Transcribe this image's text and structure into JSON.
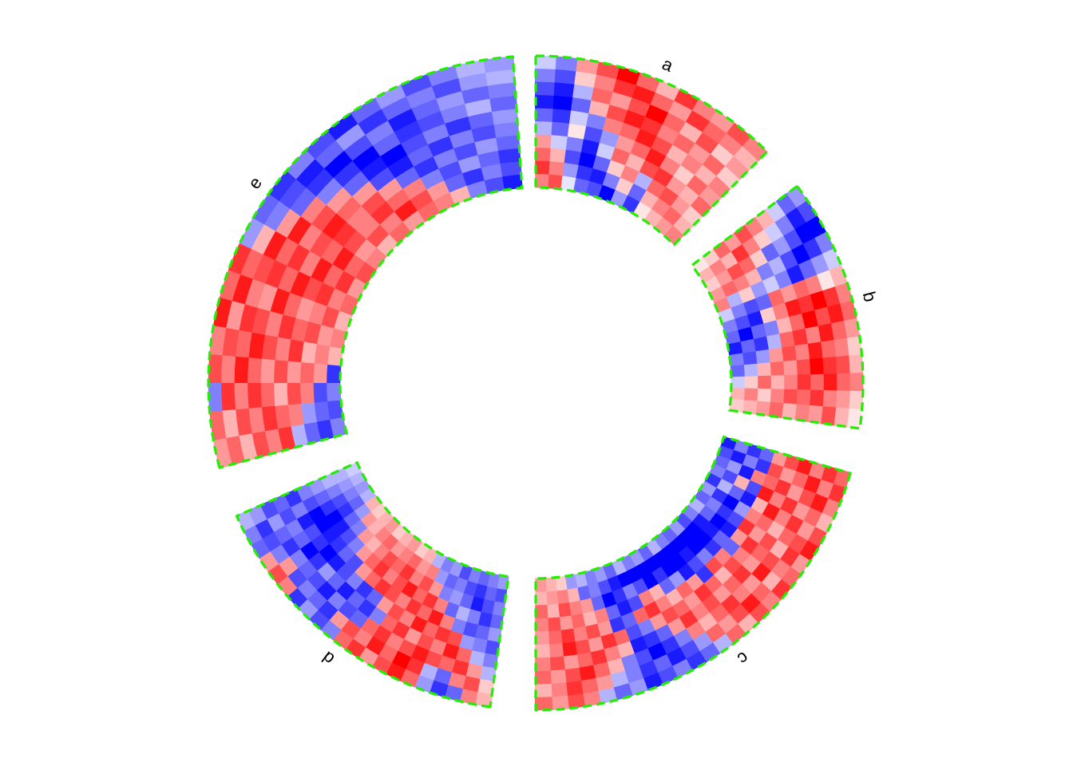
{
  "chart_data": {
    "type": "heatmap",
    "layout": "circular",
    "color_scale": {
      "low": "#0000ff",
      "mid": "#ffffff",
      "high": "#ff0000",
      "domain": [
        -1,
        0,
        1
      ]
    },
    "sector_border_color": "#22ee00",
    "sector_border_style": "dashed",
    "sectors": [
      {
        "label": "a",
        "rows": 10,
        "cols": 12,
        "values": [
          [
            -0.2,
            -0.5,
            0.4,
            0.7,
            1.0,
            0.6,
            0.3,
            0.8,
            0.5,
            0.4,
            0.7,
            0.5
          ],
          [
            -0.5,
            -0.7,
            0.2,
            0.5,
            0.8,
            0.9,
            0.6,
            0.4,
            0.8,
            0.6,
            0.5,
            0.3
          ],
          [
            -0.7,
            -0.9,
            -0.3,
            0.6,
            0.4,
            0.7,
            1.0,
            0.6,
            0.3,
            0.7,
            0.2,
            0.4
          ],
          [
            -0.9,
            -1.0,
            -0.6,
            0.3,
            0.7,
            0.9,
            0.8,
            0.5,
            0.6,
            0.4,
            0.6,
            0.2
          ],
          [
            -0.6,
            -0.8,
            -0.2,
            -0.5,
            0.5,
            0.6,
            0.9,
            0.7,
            0.3,
            0.5,
            0.3,
            0.5
          ],
          [
            -0.3,
            -0.6,
            0.1,
            -0.7,
            -0.4,
            0.4,
            0.6,
            0.9,
            0.5,
            0.2,
            0.6,
            0.4
          ],
          [
            0.4,
            -0.2,
            -0.5,
            -0.9,
            -0.2,
            0.6,
            0.3,
            0.7,
            0.8,
            0.4,
            0.3,
            0.6
          ],
          [
            0.6,
            0.3,
            -0.7,
            -1.0,
            -0.6,
            0.2,
            0.5,
            -0.3,
            0.6,
            0.7,
            0.4,
            0.2
          ],
          [
            0.8,
            0.5,
            -0.4,
            -0.8,
            -0.9,
            -0.5,
            0.2,
            -0.6,
            0.3,
            0.5,
            0.6,
            0.3
          ],
          [
            0.5,
            0.7,
            -0.1,
            -0.6,
            -0.7,
            -1.0,
            -0.4,
            -0.8,
            0.1,
            0.3,
            0.4,
            0.5
          ]
        ]
      },
      {
        "label": "b",
        "rows": 10,
        "cols": 14,
        "values": [
          [
            -0.4,
            -0.7,
            -1.0,
            -0.5,
            -0.2,
            0.3,
            0.5,
            0.6,
            0.4,
            0.2,
            0.3,
            0.5,
            0.2,
            0.1
          ],
          [
            -0.6,
            -0.9,
            -1.0,
            -0.8,
            -0.4,
            0.1,
            0.8,
            0.9,
            0.6,
            0.5,
            0.7,
            0.6,
            0.4,
            0.3
          ],
          [
            -0.2,
            -0.5,
            -0.7,
            -1.0,
            -0.6,
            0.5,
            1.0,
            0.7,
            0.9,
            0.6,
            0.8,
            0.9,
            0.5,
            0.7
          ],
          [
            0.3,
            -0.2,
            -0.4,
            -0.7,
            -0.9,
            0.6,
            0.8,
            1.0,
            0.5,
            0.9,
            1.0,
            0.6,
            0.8,
            0.4
          ],
          [
            0.5,
            0.2,
            -0.6,
            -0.3,
            -0.5,
            0.4,
            0.9,
            0.6,
            0.8,
            0.5,
            0.7,
            0.8,
            0.6,
            0.5
          ],
          [
            0.7,
            0.5,
            0.2,
            -0.5,
            -0.2,
            0.6,
            0.5,
            0.3,
            0.6,
            0.7,
            0.4,
            0.5,
            0.7,
            0.3
          ],
          [
            0.4,
            0.8,
            0.6,
            0.3,
            -0.4,
            -0.6,
            0.2,
            -0.5,
            -0.3,
            0.4,
            0.6,
            0.3,
            0.5,
            0.6
          ],
          [
            0.6,
            0.3,
            0.7,
            0.5,
            0.2,
            -0.7,
            -0.9,
            -0.6,
            -0.8,
            -0.4,
            0.3,
            0.6,
            0.2,
            0.4
          ],
          [
            0.2,
            0.5,
            0.4,
            0.6,
            -0.3,
            -0.5,
            -0.7,
            -1.0,
            -0.6,
            -0.7,
            -0.3,
            0.2,
            0.5,
            0.3
          ],
          [
            0.1,
            0.3,
            0.2,
            0.4,
            0.5,
            -0.2,
            -0.5,
            -0.6,
            -0.9,
            -0.5,
            -0.6,
            -0.2,
            0.3,
            0.2
          ]
        ]
      },
      {
        "label": "c",
        "rows": 10,
        "cols": 26,
        "values": [
          [
            0.6,
            0.8,
            0.5,
            0.3,
            0.7,
            0.9,
            0.4,
            0.6,
            0.8,
            0.5,
            0.7,
            0.3,
            0.6,
            -0.3,
            -0.6,
            -0.8,
            -0.5,
            -0.7,
            -0.9,
            -0.4,
            -0.6,
            -0.3,
            0.5,
            0.7,
            0.4,
            0.6
          ],
          [
            0.8,
            0.5,
            0.9,
            0.6,
            0.4,
            0.7,
            0.8,
            0.5,
            0.3,
            0.6,
            0.9,
            0.7,
            0.4,
            0.6,
            -0.4,
            -0.7,
            -0.9,
            -0.6,
            -0.8,
            -0.5,
            -0.3,
            0.4,
            0.6,
            0.8,
            0.5,
            0.3
          ],
          [
            0.5,
            0.9,
            0.7,
            0.4,
            0.8,
            0.6,
            0.3,
            0.7,
            0.9,
            0.4,
            0.5,
            0.8,
            0.6,
            0.3,
            0.5,
            -0.5,
            -0.8,
            -1.0,
            -0.7,
            -0.5,
            0.3,
            0.6,
            0.9,
            0.7,
            0.4,
            0.6
          ],
          [
            0.9,
            0.6,
            0.4,
            0.8,
            0.5,
            0.3,
            0.7,
            0.6,
            0.4,
            0.8,
            0.6,
            0.4,
            0.7,
            0.5,
            0.8,
            0.4,
            -0.6,
            -0.8,
            -0.9,
            0.3,
            0.5,
            0.8,
            0.6,
            0.4,
            0.7,
            0.5
          ],
          [
            0.7,
            0.4,
            0.8,
            0.5,
            0.9,
            0.6,
            0.4,
            0.8,
            0.5,
            0.7,
            0.3,
            0.6,
            0.8,
            0.4,
            0.6,
            0.7,
            0.4,
            -0.5,
            -0.7,
            0.6,
            0.8,
            0.4,
            0.7,
            0.9,
            0.5,
            0.3
          ],
          [
            0.4,
            0.7,
            0.6,
            0.9,
            0.3,
            0.5,
            0.8,
            0.4,
            -0.6,
            0.5,
            0.7,
            -0.8,
            0.4,
            0.6,
            0.3,
            0.5,
            0.8,
            0.6,
            -0.6,
            -0.8,
            0.4,
            0.7,
            0.5,
            0.8,
            0.6,
            0.4
          ],
          [
            -0.6,
            -0.8,
            0.5,
            -0.7,
            -0.9,
            -0.4,
            -0.7,
            -0.9,
            -0.6,
            -0.8,
            -0.5,
            -0.7,
            -0.9,
            -0.4,
            -0.6,
            0.3,
            0.5,
            -0.7,
            -0.9,
            -0.6,
            0.5,
            0.3,
            0.6,
            0.4,
            0.7,
            0.5
          ],
          [
            -0.8,
            -0.5,
            -0.9,
            0.3,
            -0.6,
            -1.0,
            -0.8,
            -1.0,
            -0.9,
            -1.0,
            -1.0,
            -0.9,
            -1.0,
            -1.0,
            -0.8,
            -1.0,
            -0.7,
            -0.5,
            -0.8,
            -1.0,
            -0.6,
            0.4,
            0.5,
            0.7,
            0.3,
            0.6
          ],
          [
            -0.5,
            -0.9,
            -0.4,
            -0.7,
            -0.3,
            -0.8,
            -0.5,
            -0.6,
            -0.9,
            -1.0,
            -1.0,
            -1.0,
            -1.0,
            -1.0,
            -1.0,
            -1.0,
            -1.0,
            -1.0,
            -0.9,
            -0.7,
            -0.5,
            -0.6,
            0.3,
            0.5,
            0.4,
            0.3
          ],
          [
            -0.9,
            -0.7,
            -0.6,
            -0.5,
            -0.8,
            -0.4,
            -0.6,
            -0.3,
            -0.5,
            -0.7,
            -0.4,
            -0.6,
            -0.5,
            -0.3,
            -0.6,
            -0.4,
            -0.5,
            -0.3,
            -0.6,
            -0.4,
            -0.5,
            -0.3,
            -0.4,
            0.2,
            0.3,
            0.4
          ]
        ]
      },
      {
        "label": "d",
        "rows": 10,
        "cols": 21,
        "values": [
          [
            0.3,
            0.5,
            -0.6,
            -0.8,
            -0.4,
            0.6,
            0.9,
            0.7,
            0.4,
            0.8,
            0.6,
            -0.5,
            -0.7,
            -0.4,
            -0.8,
            0.5,
            0.7,
            0.4,
            -0.6,
            -0.5,
            -0.3
          ],
          [
            0.2,
            0.7,
            0.5,
            -0.6,
            -0.3,
            0.8,
            1.0,
            0.6,
            0.9,
            0.5,
            0.7,
            0.4,
            -0.8,
            -0.6,
            -0.5,
            -0.7,
            0.4,
            -0.5,
            -0.7,
            -0.8,
            -0.4
          ],
          [
            -0.3,
            0.4,
            0.8,
            0.6,
            0.7,
            0.9,
            0.7,
            0.5,
            0.8,
            0.6,
            -0.6,
            -0.7,
            -0.5,
            -0.9,
            -0.7,
            -0.6,
            -0.5,
            -0.8,
            -0.6,
            -0.4,
            -0.7
          ],
          [
            -0.5,
            -0.3,
            0.6,
            0.9,
            0.5,
            0.7,
            0.4,
            0.8,
            0.6,
            -0.5,
            -0.8,
            -0.6,
            -0.9,
            -0.6,
            -0.4,
            -0.8,
            -1.0,
            -0.6,
            -0.5,
            -0.7,
            -0.6
          ],
          [
            -0.7,
            -0.5,
            -0.4,
            0.7,
            0.8,
            0.6,
            0.9,
            0.5,
            0.7,
            0.4,
            -0.6,
            -0.8,
            -0.5,
            -0.7,
            -0.9,
            -1.0,
            -0.8,
            -0.7,
            -0.9,
            -0.5,
            -0.8
          ],
          [
            -0.4,
            -0.6,
            -0.7,
            -0.5,
            0.5,
            0.9,
            0.6,
            0.8,
            0.5,
            0.7,
            0.8,
            0.6,
            0.4,
            -0.7,
            -0.6,
            -0.8,
            -0.9,
            -1.0,
            -1.0,
            -0.7,
            -0.5
          ],
          [
            -0.6,
            -0.8,
            -0.5,
            -0.3,
            -0.6,
            0.5,
            0.8,
            0.6,
            0.9,
            0.7,
            0.5,
            0.8,
            0.6,
            0.4,
            -0.5,
            -0.7,
            -0.9,
            -1.0,
            -0.8,
            -0.6,
            -0.4
          ],
          [
            -0.5,
            -0.7,
            -0.9,
            -0.6,
            -0.4,
            -0.5,
            0.4,
            0.7,
            0.5,
            0.8,
            0.6,
            0.7,
            0.5,
            0.3,
            0.4,
            -0.5,
            -0.6,
            -0.8,
            -0.7,
            -0.5,
            -0.3
          ],
          [
            -0.7,
            -0.6,
            -0.8,
            -0.7,
            -0.5,
            -0.6,
            -0.4,
            0.5,
            0.4,
            0.6,
            0.5,
            0.4,
            0.6,
            0.5,
            0.3,
            0.4,
            -0.4,
            -0.6,
            -0.5,
            -0.4,
            -0.3
          ],
          [
            -0.4,
            -0.5,
            -0.6,
            -0.5,
            -0.7,
            -0.4,
            -0.5,
            -0.3,
            0.3,
            0.2,
            0.4,
            0.3,
            0.2,
            0.4,
            0.3,
            0.2,
            0.3,
            -0.3,
            -0.4,
            -0.3,
            -0.2
          ]
        ]
      },
      {
        "label": "e",
        "rows": 10,
        "cols": 20,
        "values": [
          [
            0.4,
            0.6,
            -0.5,
            0.7,
            0.5,
            0.9,
            0.6,
            0.8,
            -0.4,
            -0.6,
            -0.8,
            -0.5,
            -0.7,
            -0.9,
            -0.6,
            -0.4,
            -0.7,
            -0.5,
            -0.3,
            -0.4
          ],
          [
            0.6,
            0.3,
            0.8,
            0.5,
            0.7,
            0.4,
            0.9,
            0.6,
            0.3,
            -0.5,
            -0.7,
            -0.9,
            -0.6,
            -0.4,
            -0.8,
            -0.6,
            -0.5,
            -0.7,
            -0.4,
            -0.3
          ],
          [
            0.3,
            0.7,
            0.5,
            0.9,
            0.6,
            0.8,
            0.5,
            0.7,
            0.9,
            0.4,
            -0.6,
            -0.8,
            -1.0,
            -0.7,
            -0.5,
            -0.9,
            -0.6,
            -0.4,
            -0.6,
            -0.5
          ],
          [
            0.7,
            0.5,
            0.8,
            0.6,
            0.9,
            0.7,
            0.4,
            0.8,
            0.6,
            0.9,
            0.5,
            -0.5,
            -0.8,
            -1.0,
            -0.6,
            -0.8,
            -0.7,
            -0.5,
            -0.3,
            -0.6
          ],
          [
            0.5,
            0.8,
            0.6,
            0.4,
            0.7,
            0.5,
            0.9,
            0.6,
            0.8,
            0.5,
            0.7,
            0.4,
            -0.6,
            -0.9,
            -1.0,
            -0.7,
            -0.5,
            -0.8,
            -0.6,
            -0.4
          ],
          [
            0.8,
            0.6,
            0.3,
            0.7,
            0.5,
            0.8,
            0.6,
            0.9,
            0.5,
            0.7,
            0.9,
            0.6,
            0.4,
            -0.7,
            -0.9,
            -0.6,
            -0.8,
            -0.5,
            -0.7,
            -0.5
          ],
          [
            -0.3,
            0.5,
            0.7,
            0.4,
            0.8,
            0.6,
            0.4,
            0.7,
            0.9,
            0.6,
            0.8,
            0.5,
            0.7,
            0.4,
            -0.6,
            -0.8,
            -0.5,
            -0.7,
            -0.4,
            -0.6
          ],
          [
            -0.6,
            -0.4,
            0.5,
            0.6,
            0.3,
            0.7,
            0.5,
            0.8,
            0.6,
            0.9,
            0.7,
            0.5,
            0.8,
            0.6,
            0.5,
            -0.5,
            -0.7,
            -0.4,
            -0.6,
            -0.8
          ],
          [
            -0.8,
            -0.6,
            -0.7,
            0.4,
            0.5,
            0.4,
            0.7,
            0.5,
            0.8,
            0.6,
            0.4,
            0.7,
            0.5,
            0.9,
            0.7,
            0.4,
            -0.6,
            -0.8,
            -0.5,
            -0.7
          ],
          [
            -0.5,
            -0.7,
            -0.5,
            -0.8,
            0.3,
            0.5,
            0.3,
            0.6,
            0.4,
            0.7,
            0.5,
            0.3,
            0.6,
            0.4,
            0.6,
            0.5,
            0.3,
            -0.5,
            -0.7,
            -0.9
          ]
        ]
      }
    ]
  }
}
